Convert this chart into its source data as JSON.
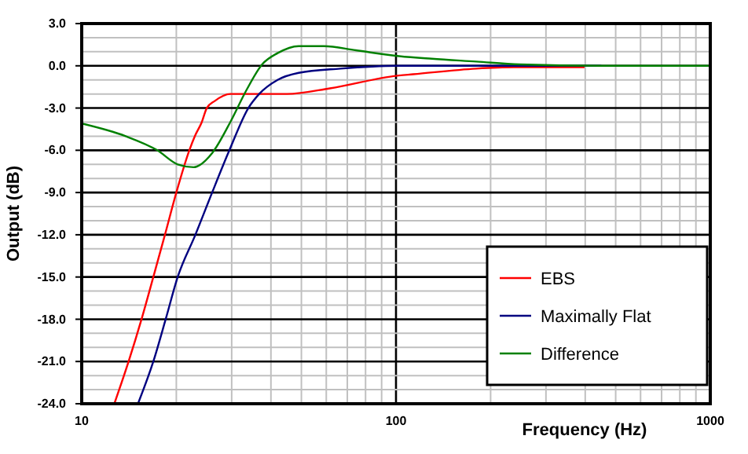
{
  "chart_data": {
    "type": "line",
    "xlabel": "Frequency (Hz)",
    "ylabel": "Output (dB)",
    "log": "x",
    "grid": true,
    "legend": "bottom right",
    "marker": "none",
    "line_style": "solid",
    "xlim": [
      10,
      1000
    ],
    "xticks": [
      10,
      100,
      1000
    ],
    "ylim": [
      -24,
      3
    ],
    "yticks": [
      {
        "value": -24,
        "label": "-24.0"
      },
      {
        "value": -21,
        "label": "-21.0"
      },
      {
        "value": -18,
        "label": "-18.0"
      },
      {
        "value": -15,
        "label": "-15.0"
      },
      {
        "value": -12,
        "label": "-12.0"
      },
      {
        "value": -9,
        "label": "-9.0"
      },
      {
        "value": -6,
        "label": "-6.0"
      },
      {
        "value": -3,
        "label": "-3.0"
      },
      {
        "value": 0,
        "label": "0.0"
      },
      {
        "value": 3,
        "label": "3.0"
      }
    ],
    "series": [
      {
        "name": "EBS",
        "color": "#ff0000",
        "x": [
          12.7,
          14.1,
          15.5,
          16.9,
          18.4,
          20,
          22,
          22.9,
          24.1,
          25,
          26.5,
          29.7,
          45,
          61.6,
          101,
          113.5,
          180,
          237,
          398
        ],
        "values": [
          -24,
          -21,
          -18,
          -15,
          -12,
          -9,
          -6,
          -5,
          -4,
          -3,
          -2.5,
          -2,
          -2,
          -1.6,
          -0.7,
          -0.6,
          -0.2,
          -0.1,
          -0.1
        ]
      },
      {
        "name": "Maximally Flat",
        "color": "#000080",
        "x": [
          15.1,
          16.9,
          18.5,
          20.2,
          23,
          26,
          29.5,
          33.9,
          36.7,
          42,
          49,
          66.5,
          101,
          450
        ],
        "values": [
          -24,
          -21,
          -18,
          -15,
          -12,
          -9,
          -6,
          -3,
          -2,
          -1,
          -0.5,
          -0.2,
          0,
          0
        ]
      },
      {
        "name": "Difference",
        "color": "#008000",
        "x": [
          10,
          13.8,
          17.4,
          20.2,
          22.7,
          26,
          29.7,
          33.3,
          37.5,
          42,
          49,
          59,
          74.5,
          101,
          130,
          180,
          247,
          463,
          1000
        ],
        "values": [
          -4.1,
          -5,
          -6,
          -7,
          -7.2,
          -6.2,
          -4,
          -1.8,
          0.1,
          0.9,
          1.4,
          1.4,
          1.1,
          0.7,
          0.5,
          0.3,
          0.1,
          0,
          0
        ]
      }
    ]
  }
}
